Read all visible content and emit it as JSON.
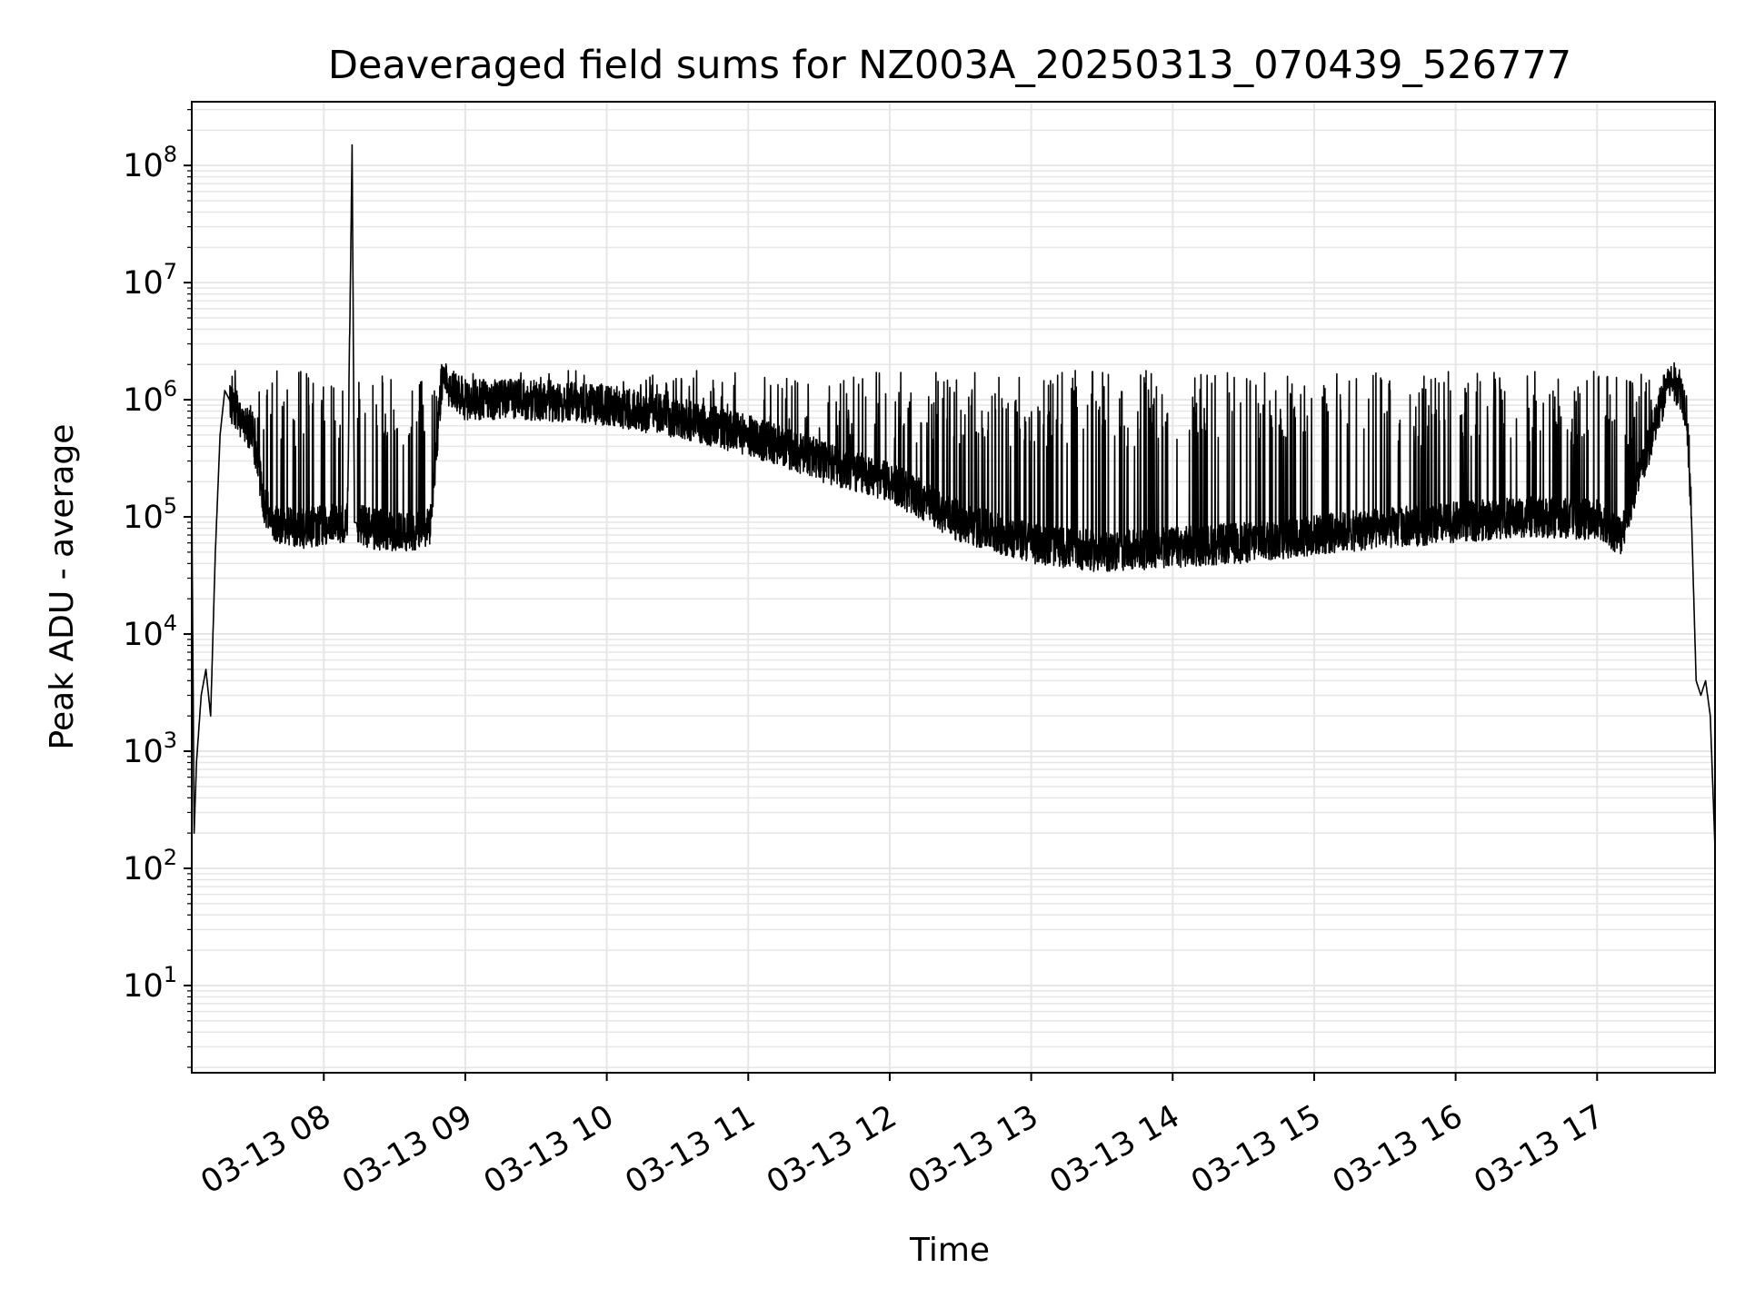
{
  "chart_data": {
    "type": "line",
    "title": "Deaveraged field sums for NZ003A_20250313_070439_526777",
    "xlabel": "Time",
    "ylabel": "Peak ADU - average",
    "x_ticks": [
      "03-13 08",
      "03-13 09",
      "03-13 10",
      "03-13 11",
      "03-13 12",
      "03-13 13",
      "03-13 14",
      "03-13 15",
      "03-13 16",
      "03-13 17"
    ],
    "y_ticks": [
      {
        "base": "10",
        "exp": "1",
        "value": 10
      },
      {
        "base": "10",
        "exp": "2",
        "value": 100
      },
      {
        "base": "10",
        "exp": "3",
        "value": 1000
      },
      {
        "base": "10",
        "exp": "4",
        "value": 10000
      },
      {
        "base": "10",
        "exp": "5",
        "value": 100000
      },
      {
        "base": "10",
        "exp": "6",
        "value": 1000000
      },
      {
        "base": "10",
        "exp": "7",
        "value": 10000000
      },
      {
        "base": "10",
        "exp": "8",
        "value": 100000000
      }
    ],
    "y_scale": "log",
    "xlim": [
      "2025-03-13 07:04",
      "2025-03-13 17:50"
    ],
    "ylim": [
      1.8,
      350000000
    ],
    "grid": true,
    "line_color": "#000000",
    "grid_color": "#e6e6e6",
    "series": [
      {
        "x": [
          "2025-03-13 07:04",
          "2025-03-13 07:05",
          "2025-03-13 07:06",
          "2025-03-13 07:08",
          "2025-03-13 07:10",
          "2025-03-13 07:12",
          "2025-03-13 07:14",
          "2025-03-13 07:16",
          "2025-03-13 07:18",
          "2025-03-13 07:20",
          "2025-03-13 07:25",
          "2025-03-13 07:30",
          "2025-03-13 07:35",
          "2025-03-13 07:40",
          "2025-03-13 07:50",
          "2025-03-13 08:00",
          "2025-03-13 08:10",
          "2025-03-13 08:12",
          "2025-03-13 08:13",
          "2025-03-13 08:20",
          "2025-03-13 08:30",
          "2025-03-13 08:45",
          "2025-03-13 08:50",
          "2025-03-13 09:00",
          "2025-03-13 09:30",
          "2025-03-13 10:00",
          "2025-03-13 10:30",
          "2025-03-13 11:00",
          "2025-03-13 11:30",
          "2025-03-13 12:00",
          "2025-03-13 12:30",
          "2025-03-13 13:00",
          "2025-03-13 13:30",
          "2025-03-13 14:00",
          "2025-03-13 14:30",
          "2025-03-13 15:00",
          "2025-03-13 15:30",
          "2025-03-13 16:00",
          "2025-03-13 16:30",
          "2025-03-13 17:00",
          "2025-03-13 17:10",
          "2025-03-13 17:20",
          "2025-03-13 17:28",
          "2025-03-13 17:30",
          "2025-03-13 17:35",
          "2025-03-13 17:38",
          "2025-03-13 17:40",
          "2025-03-13 17:42",
          "2025-03-13 17:44",
          "2025-03-13 17:46",
          "2025-03-13 17:48",
          "2025-03-13 17:50"
        ],
        "y": [
          150000,
          200,
          800,
          3000,
          5000,
          2000,
          50000,
          500000,
          1200000,
          1000000,
          700000,
          500000,
          120000,
          90000,
          80000,
          85000,
          90000,
          150000000,
          90000,
          80000,
          75000,
          80000,
          1500000,
          1000000,
          1000000,
          900000,
          700000,
          500000,
          300000,
          200000,
          90000,
          60000,
          50000,
          55000,
          60000,
          70000,
          80000,
          90000,
          100000,
          95000,
          70000,
          300000,
          1000000,
          1500000,
          1300000,
          800000,
          100000,
          4000,
          3000,
          4000,
          2000,
          150
        ]
      }
    ]
  }
}
